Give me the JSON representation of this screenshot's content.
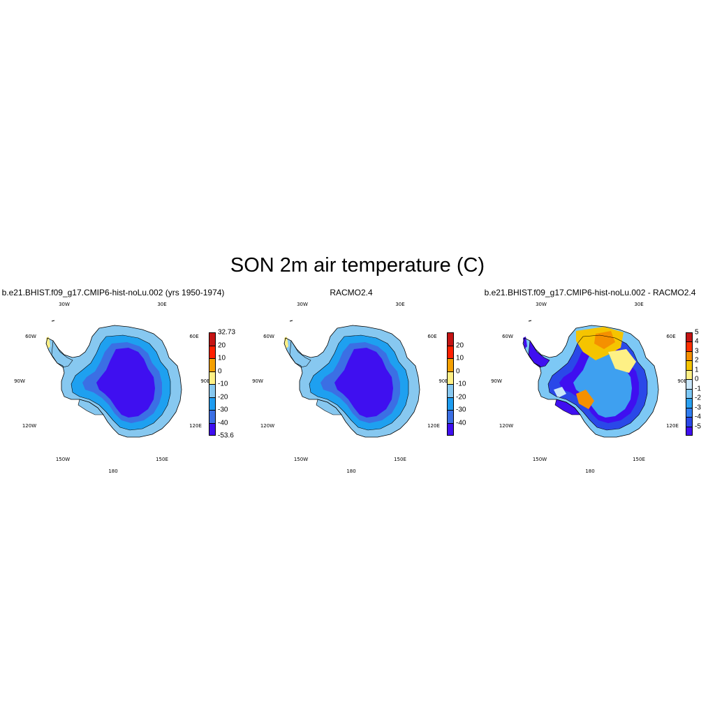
{
  "figure": {
    "title": "SON 2m air temperature (C)"
  },
  "panels": [
    {
      "id": "model",
      "title": "b.e21.BHIST.f09_g17.CMIP6-hist-noLu.002 (yrs 1950-1974)",
      "colorbar": {
        "colors": [
          "#3f0ff0",
          "#3b6fe4",
          "#1e9cf0",
          "#87c8f0",
          "#fef085",
          "#f5a000",
          "#ff2000",
          "#c41414"
        ],
        "labels": [
          "-53.6",
          "-40",
          "-30",
          "-20",
          "-10",
          "0",
          "10",
          "20",
          "32.73"
        ]
      },
      "interior_color": "#3f0ff0",
      "ring_colors": [
        "#1ea0f0",
        "#3b6fe4",
        "#87c8f0"
      ]
    },
    {
      "id": "obs",
      "title": "RACMO2.4",
      "colorbar": {
        "colors": [
          "#3f0ff0",
          "#3b6fe4",
          "#1e9cf0",
          "#87c8f0",
          "#fef085",
          "#f5a000",
          "#ff2000",
          "#c41414"
        ],
        "labels": [
          "-40",
          "-30",
          "-20",
          "-10",
          "0",
          "10",
          "20"
        ]
      },
      "interior_color": "#3f0ff0",
      "ring_colors": [
        "#1ea0f0",
        "#3b6fe4",
        "#87c8f0"
      ]
    },
    {
      "id": "diff",
      "title": "b.e21.BHIST.f09_g17.CMIP6-hist-noLu.002 - RACMO2.4",
      "colorbar": {
        "colors": [
          "#3f0ff0",
          "#2a48e8",
          "#2f7df0",
          "#2aa0f0",
          "#7dc8f5",
          "#c8e6fa",
          "#fef085",
          "#f5c400",
          "#f59000",
          "#ff3000",
          "#c41414"
        ],
        "labels": [
          "-5",
          "-4",
          "-3",
          "-2",
          "-1",
          "0",
          "1",
          "2",
          "3",
          "4",
          "5"
        ]
      },
      "interior_color": "#3ea0f0",
      "ring_colors": [
        "#2a48e8",
        "#3f0ff0",
        "#7dc8f5"
      ]
    }
  ],
  "graticule": {
    "labels": [
      "30W",
      "30E",
      "60W",
      "60E",
      "90W",
      "90E",
      "120W",
      "120E",
      "150W",
      "150E",
      "180"
    ]
  }
}
